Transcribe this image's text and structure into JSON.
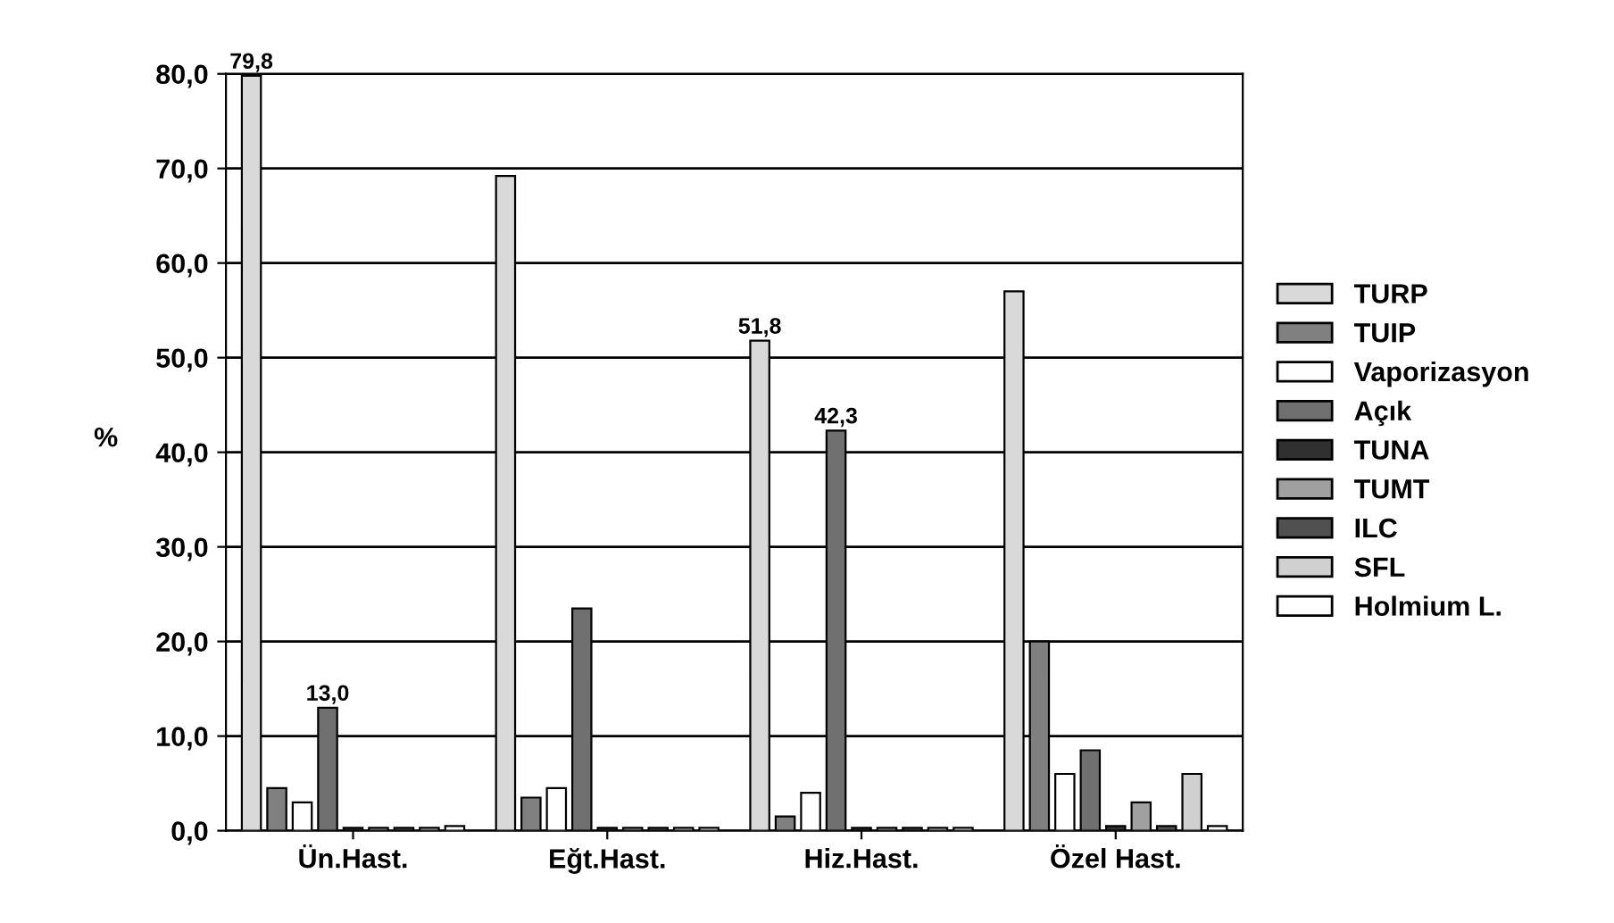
{
  "chart_data": {
    "type": "bar",
    "ylabel": "%",
    "categories": [
      "Ün.Hast.",
      "Eğt.Hast.",
      "Hiz.Hast.",
      "Özel Hast."
    ],
    "series": [
      {
        "name": "TURP",
        "color": "#d9d9d9",
        "values": [
          79.8,
          69.2,
          51.8,
          57.0
        ],
        "value_labels": [
          "79,8",
          null,
          "51,8",
          null
        ]
      },
      {
        "name": "TUIP",
        "color": "#808080",
        "values": [
          4.5,
          3.5,
          1.5,
          20.0
        ]
      },
      {
        "name": "Vaporizasyon",
        "color": "#ffffff",
        "values": [
          3.0,
          4.5,
          4.0,
          6.0
        ]
      },
      {
        "name": "Açık",
        "color": "#707070",
        "values": [
          13.0,
          23.5,
          42.3,
          8.5
        ],
        "value_labels": [
          "13,0",
          null,
          "42,3",
          null
        ]
      },
      {
        "name": "TUNA",
        "color": "#303030",
        "values": [
          0.3,
          0.3,
          0.3,
          0.5
        ]
      },
      {
        "name": "TUMT",
        "color": "#a0a0a0",
        "values": [
          0.3,
          0.3,
          0.3,
          3.0
        ]
      },
      {
        "name": "ILC",
        "color": "#505050",
        "values": [
          0.3,
          0.3,
          0.3,
          0.5
        ]
      },
      {
        "name": "SFL",
        "color": "#d0d0d0",
        "values": [
          0.3,
          0.3,
          0.3,
          6.0
        ]
      },
      {
        "name": "Holmium L.",
        "color": "#ffffff",
        "values": [
          0.5,
          0.3,
          0.3,
          0.5
        ]
      }
    ],
    "ylim": [
      0,
      80
    ],
    "yticks": [
      {
        "value": 0,
        "label": "0,0"
      },
      {
        "value": 10,
        "label": "10,0"
      },
      {
        "value": 20,
        "label": "20,0"
      },
      {
        "value": 30,
        "label": "30,0"
      },
      {
        "value": 40,
        "label": "40,0"
      },
      {
        "value": 50,
        "label": "50,0"
      },
      {
        "value": 60,
        "label": "60,0"
      },
      {
        "value": 70,
        "label": "70,0"
      },
      {
        "value": 80,
        "label": "80,0"
      }
    ],
    "grid": "y",
    "legend": "right"
  }
}
